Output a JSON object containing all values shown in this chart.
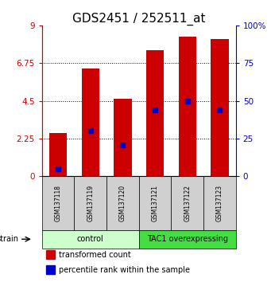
{
  "title": "GDS2451 / 252511_at",
  "samples": [
    "GSM137118",
    "GSM137119",
    "GSM137120",
    "GSM137121",
    "GSM137122",
    "GSM137123"
  ],
  "bar_heights": [
    2.6,
    6.45,
    4.6,
    7.5,
    8.35,
    8.2
  ],
  "percentile_values": [
    5,
    30,
    21,
    44,
    50,
    44
  ],
  "bar_color": "#cc0000",
  "percentile_color": "#0000cc",
  "left_ylim": [
    0,
    9
  ],
  "right_ylim": [
    0,
    100
  ],
  "left_yticks": [
    0,
    2.25,
    4.5,
    6.75,
    9
  ],
  "right_yticks": [
    0,
    25,
    50,
    75,
    100
  ],
  "right_yticklabels": [
    "0",
    "25",
    "50",
    "75",
    "100%"
  ],
  "dotted_lines": [
    2.25,
    4.5,
    6.75
  ],
  "groups": [
    {
      "label": "control",
      "indices": [
        0,
        1,
        2
      ],
      "color": "#ccffcc"
    },
    {
      "label": "TAC1 overexpressing",
      "indices": [
        3,
        4,
        5
      ],
      "color": "#44dd44"
    }
  ],
  "group_row_label": "strain",
  "legend_items": [
    {
      "color": "#cc0000",
      "label": "transformed count"
    },
    {
      "color": "#0000cc",
      "label": "percentile rank within the sample"
    }
  ],
  "bar_width": 0.55,
  "title_fontsize": 11,
  "tick_fontsize": 7.5,
  "label_fontsize": 7,
  "sample_fontsize": 5.5,
  "group_fontsize": 7,
  "legend_fontsize": 7
}
